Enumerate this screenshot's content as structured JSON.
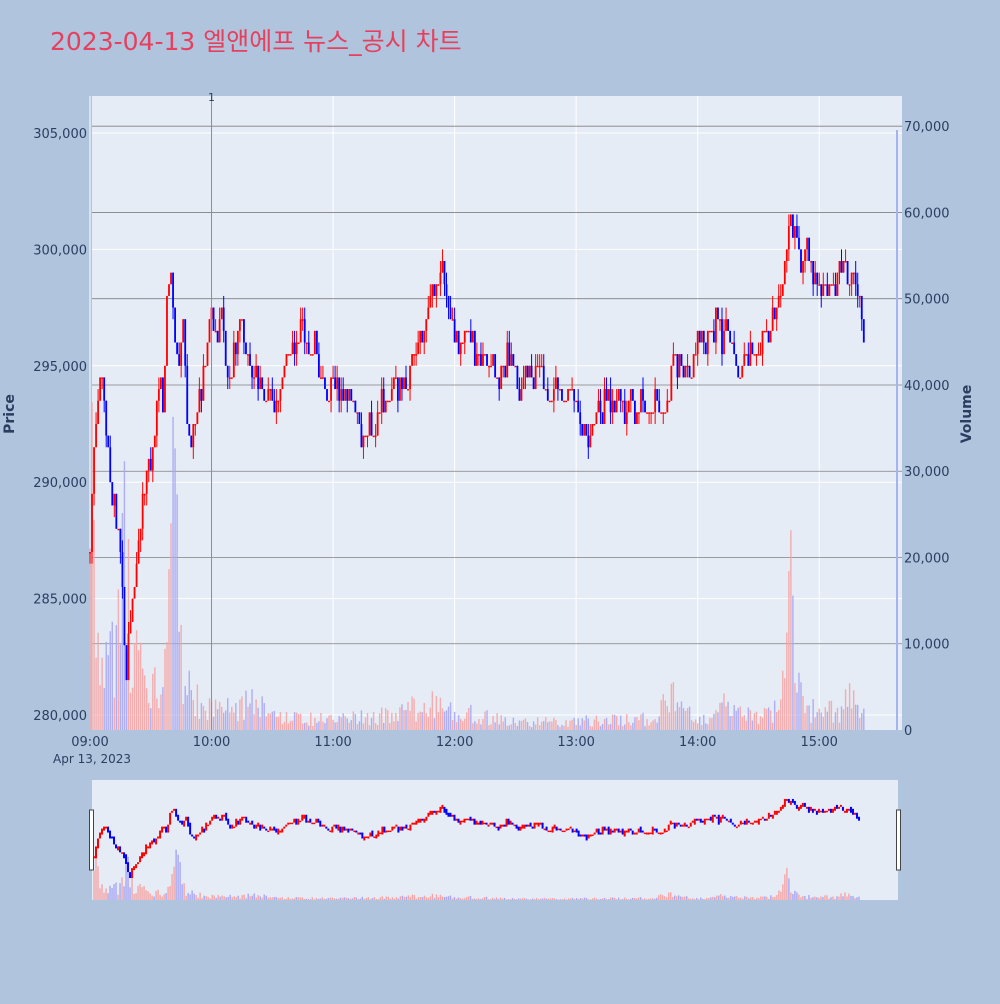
{
  "title": "2023-04-13 엘앤에프 뉴스_공시 차트",
  "colors": {
    "page_bg": "#b0c4de",
    "plot_bg": "#e5ecf6",
    "up": "#ff0000",
    "down": "#0000ff",
    "title": "#e5405e",
    "text": "#2a3f5f",
    "grid_white": "#ffffff",
    "grid_dark": "#808080",
    "marker": "#6f85ff"
  },
  "chart_data": {
    "type": "candlestick",
    "title": "2023-04-13 엘앤에프 뉴스_공시 차트",
    "ylabel": "Price",
    "y2label": "Volume",
    "ylim": [
      279700,
      305900
    ],
    "y2lim": [
      0,
      73500
    ],
    "xlim": [
      "09:00",
      "15:30"
    ],
    "price_ticks": [
      "280,000",
      "285,000",
      "290,000",
      "295,000",
      "300,000",
      "305,000"
    ],
    "volume_ticks": [
      "0",
      "10,000",
      "20,000",
      "30,000",
      "40,000",
      "50,000",
      "60,000",
      "70,000"
    ],
    "time_ticks": [
      "09:00",
      "10:00",
      "11:00",
      "12:00",
      "13:00",
      "14:00",
      "15:00"
    ],
    "date_label": "Apr 13, 2023",
    "grid": true,
    "annotations": [
      {
        "time": "10:00",
        "label": "1"
      }
    ],
    "price_keyframes": [
      [
        "09:00",
        287000
      ],
      [
        "09:02",
        291500
      ],
      [
        "09:04",
        293500
      ],
      [
        "09:06",
        294500
      ],
      [
        "09:09",
        291000
      ],
      [
        "09:11",
        289500
      ],
      [
        "09:13",
        288000
      ],
      [
        "09:15",
        287000
      ],
      [
        "09:16",
        285500
      ],
      [
        "09:17",
        283000
      ],
      [
        "09:18",
        281500
      ],
      [
        "09:20",
        284000
      ],
      [
        "09:22",
        285500
      ],
      [
        "09:24",
        287000
      ],
      [
        "09:26",
        289000
      ],
      [
        "09:29",
        290500
      ],
      [
        "09:32",
        292000
      ],
      [
        "09:34",
        294500
      ],
      [
        "09:36",
        293000
      ],
      [
        "09:38",
        298000
      ],
      [
        "09:40",
        299000
      ],
      [
        "09:42",
        296000
      ],
      [
        "09:44",
        295000
      ],
      [
        "09:46",
        296500
      ],
      [
        "09:48",
        293000
      ],
      [
        "09:50",
        291000
      ],
      [
        "09:52",
        292500
      ],
      [
        "09:55",
        294000
      ],
      [
        "09:58",
        296000
      ],
      [
        "10:00",
        297000
      ],
      [
        "10:03",
        296000
      ],
      [
        "10:05",
        297500
      ],
      [
        "10:07",
        295000
      ],
      [
        "10:09",
        294000
      ],
      [
        "10:11",
        295500
      ],
      [
        "10:14",
        297000
      ],
      [
        "10:17",
        295500
      ],
      [
        "10:20",
        295000
      ],
      [
        "10:23",
        294000
      ],
      [
        "10:26",
        293500
      ],
      [
        "10:29",
        294000
      ],
      [
        "10:32",
        293000
      ],
      [
        "10:35",
        294500
      ],
      [
        "10:38",
        295500
      ],
      [
        "10:42",
        296000
      ],
      [
        "10:45",
        297000
      ],
      [
        "10:48",
        295500
      ],
      [
        "10:51",
        296000
      ],
      [
        "10:54",
        294500
      ],
      [
        "10:57",
        294000
      ],
      [
        "11:00",
        294500
      ],
      [
        "11:03",
        293500
      ],
      [
        "11:06",
        294000
      ],
      [
        "11:09",
        293500
      ],
      [
        "11:12",
        293000
      ],
      [
        "11:15",
        291500
      ],
      [
        "11:18",
        292500
      ],
      [
        "11:21",
        292000
      ],
      [
        "11:24",
        294000
      ],
      [
        "11:27",
        293000
      ],
      [
        "11:30",
        294500
      ],
      [
        "11:33",
        294000
      ],
      [
        "11:36",
        294500
      ],
      [
        "11:39",
        295000
      ],
      [
        "11:42",
        296000
      ],
      [
        "11:45",
        297000
      ],
      [
        "11:48",
        297500
      ],
      [
        "11:51",
        298500
      ],
      [
        "11:54",
        299000
      ],
      [
        "11:57",
        297500
      ],
      [
        "12:00",
        296500
      ],
      [
        "12:03",
        296000
      ],
      [
        "12:06",
        296500
      ],
      [
        "12:09",
        296000
      ],
      [
        "12:12",
        295000
      ],
      [
        "12:15",
        295500
      ],
      [
        "12:18",
        295000
      ],
      [
        "12:21",
        294500
      ],
      [
        "12:24",
        295000
      ],
      [
        "12:27",
        295500
      ],
      [
        "12:30",
        294500
      ],
      [
        "12:33",
        294000
      ],
      [
        "12:36",
        295000
      ],
      [
        "12:39",
        294500
      ],
      [
        "12:42",
        294500
      ],
      [
        "12:45",
        294000
      ],
      [
        "12:48",
        293500
      ],
      [
        "12:51",
        294000
      ],
      [
        "12:54",
        293500
      ],
      [
        "12:57",
        294000
      ],
      [
        "13:00",
        293500
      ],
      [
        "13:03",
        292500
      ],
      [
        "13:06",
        292000
      ],
      [
        "13:09",
        292500
      ],
      [
        "13:12",
        293000
      ],
      [
        "13:15",
        293500
      ],
      [
        "13:18",
        293000
      ],
      [
        "13:21",
        293500
      ],
      [
        "13:24",
        293000
      ],
      [
        "13:27",
        293500
      ],
      [
        "13:30",
        293000
      ],
      [
        "13:33",
        293500
      ],
      [
        "13:36",
        293000
      ],
      [
        "13:39",
        293500
      ],
      [
        "13:42",
        293000
      ],
      [
        "13:45",
        292800
      ],
      [
        "13:48",
        295500
      ],
      [
        "13:51",
        295000
      ],
      [
        "13:54",
        294500
      ],
      [
        "13:57",
        295000
      ],
      [
        "14:00",
        296000
      ],
      [
        "14:03",
        296000
      ],
      [
        "14:06",
        296500
      ],
      [
        "14:09",
        296800
      ],
      [
        "14:12",
        296000
      ],
      [
        "14:15",
        296500
      ],
      [
        "14:18",
        295500
      ],
      [
        "14:21",
        294500
      ],
      [
        "14:24",
        295500
      ],
      [
        "14:27",
        296000
      ],
      [
        "14:30",
        295500
      ],
      [
        "14:33",
        296000
      ],
      [
        "14:36",
        296500
      ],
      [
        "14:39",
        297500
      ],
      [
        "14:42",
        298500
      ],
      [
        "14:44",
        300000
      ],
      [
        "14:46",
        301500
      ],
      [
        "14:48",
        300500
      ],
      [
        "14:51",
        299500
      ],
      [
        "14:54",
        300000
      ],
      [
        "14:57",
        299000
      ],
      [
        "15:00",
        298000
      ],
      [
        "15:03",
        298500
      ],
      [
        "15:06",
        298500
      ],
      [
        "15:09",
        298500
      ],
      [
        "15:12",
        299500
      ],
      [
        "15:15",
        299000
      ],
      [
        "15:18",
        298500
      ],
      [
        "15:20",
        297500
      ],
      [
        "15:22",
        296500
      ]
    ],
    "volume_keyframes": [
      [
        "09:00",
        37000
      ],
      [
        "09:01",
        30000
      ],
      [
        "09:02",
        21000
      ],
      [
        "09:03",
        15000
      ],
      [
        "09:05",
        12000
      ],
      [
        "09:07",
        10000
      ],
      [
        "09:10",
        14000
      ],
      [
        "09:13",
        9000
      ],
      [
        "09:16",
        22000
      ],
      [
        "09:18",
        28000
      ],
      [
        "09:20",
        14000
      ],
      [
        "09:23",
        9000
      ],
      [
        "09:26",
        8000
      ],
      [
        "09:30",
        6000
      ],
      [
        "09:34",
        5000
      ],
      [
        "09:38",
        8000
      ],
      [
        "09:40",
        24000
      ],
      [
        "09:42",
        29000
      ],
      [
        "09:44",
        14000
      ],
      [
        "09:47",
        7000
      ],
      [
        "09:50",
        5000
      ],
      [
        "09:55",
        3500
      ],
      [
        "10:00",
        2500
      ],
      [
        "10:10",
        3000
      ],
      [
        "10:20",
        4500
      ],
      [
        "10:30",
        2000
      ],
      [
        "10:40",
        1500
      ],
      [
        "11:00",
        1500
      ],
      [
        "11:30",
        2000
      ],
      [
        "11:45",
        3500
      ],
      [
        "12:00",
        2500
      ],
      [
        "12:30",
        1000
      ],
      [
        "13:00",
        1200
      ],
      [
        "13:40",
        1500
      ],
      [
        "13:48",
        5500
      ],
      [
        "13:55",
        2000
      ],
      [
        "14:05",
        1500
      ],
      [
        "14:15",
        3500
      ],
      [
        "14:30",
        1500
      ],
      [
        "14:40",
        3000
      ],
      [
        "14:44",
        9000
      ],
      [
        "14:46",
        20000
      ],
      [
        "14:48",
        7000
      ],
      [
        "14:52",
        3000
      ],
      [
        "15:00",
        2500
      ],
      [
        "15:10",
        2500
      ],
      [
        "15:15",
        4000
      ],
      [
        "15:22",
        3000
      ]
    ]
  }
}
